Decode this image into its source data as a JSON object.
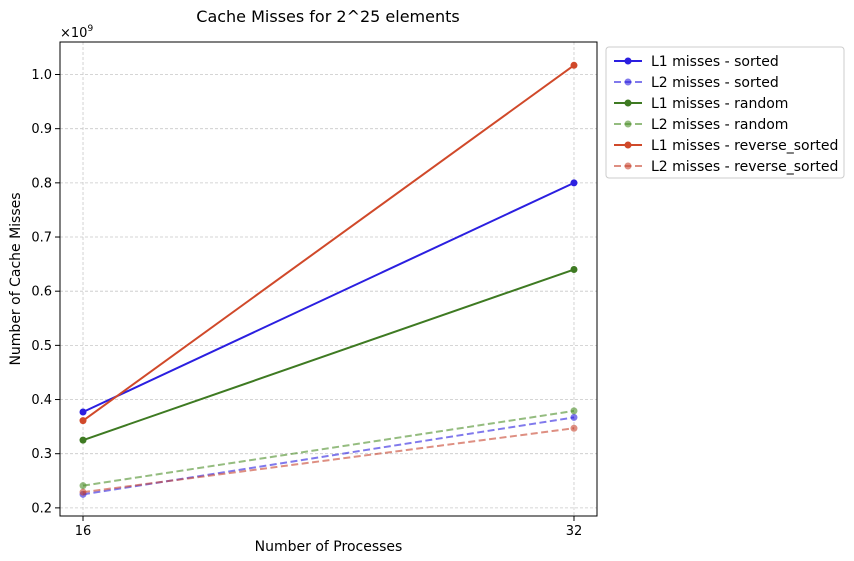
{
  "chart_data": {
    "type": "line",
    "title": "Cache Misses for 2^25 elements",
    "xlabel": "Number of Processes",
    "ylabel": "Number of Cache Misses",
    "x": [
      16,
      32
    ],
    "x_ticks": [
      "16",
      "32"
    ],
    "xlim": [
      15.25,
      32.75
    ],
    "ylim": [
      0.185,
      1.06
    ],
    "y_ticks": [
      "0.2",
      "0.3",
      "0.4",
      "0.5",
      "0.6",
      "0.7",
      "0.8",
      "0.9",
      "1.0"
    ],
    "y_offset_text": "×10",
    "y_offset_exponent": "9",
    "y_scale": 1000000000,
    "grid": true,
    "grid_style": "dashed",
    "legend_position": "outside-right-top",
    "series": [
      {
        "name": "L1 misses - sorted",
        "values": [
          0.377,
          0.8
        ],
        "color": "#2b1fe0",
        "style": "solid",
        "opacity": 1
      },
      {
        "name": "L2 misses - sorted",
        "values": [
          0.225,
          0.367
        ],
        "color": "#2b1fe0",
        "style": "dashed",
        "opacity": 0.6
      },
      {
        "name": "L1 misses - random",
        "values": [
          0.325,
          0.64
        ],
        "color": "#3e7a22",
        "style": "solid",
        "opacity": 1
      },
      {
        "name": "L2 misses - random",
        "values": [
          0.241,
          0.379
        ],
        "color": "#4d8f2a",
        "style": "dashed",
        "opacity": 0.6
      },
      {
        "name": "L1 misses - reverse_sorted",
        "values": [
          0.361,
          1.017
        ],
        "color": "#d0492a",
        "style": "solid",
        "opacity": 1
      },
      {
        "name": "L2 misses - reverse_sorted",
        "values": [
          0.229,
          0.347
        ],
        "color": "#c8452f",
        "style": "dashed",
        "opacity": 0.6
      }
    ]
  }
}
